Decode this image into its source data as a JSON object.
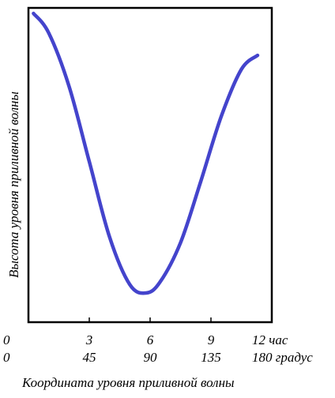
{
  "chart_data": {
    "type": "line",
    "xlabel": "Координата уровня приливной волны",
    "ylabel": "Высота уровня приливной волны",
    "xlim": [
      0,
      12
    ],
    "x_ticks_hours": [
      "0",
      "3",
      "6",
      "9",
      "12 час"
    ],
    "x_ticks_degrees": [
      "0",
      "45",
      "90",
      "135",
      "180 градус"
    ],
    "grid": false,
    "series": [
      {
        "color": "#4444cc",
        "x": [
          0.25,
          1.0,
          2.0,
          3.0,
          4.0,
          5.0,
          5.8,
          6.5,
          7.5,
          8.5,
          9.5,
          10.5,
          11.3
        ],
        "y": [
          1.0,
          0.93,
          0.74,
          0.47,
          0.2,
          0.03,
          0.0,
          0.04,
          0.18,
          0.4,
          0.63,
          0.8,
          0.85
        ]
      }
    ]
  }
}
